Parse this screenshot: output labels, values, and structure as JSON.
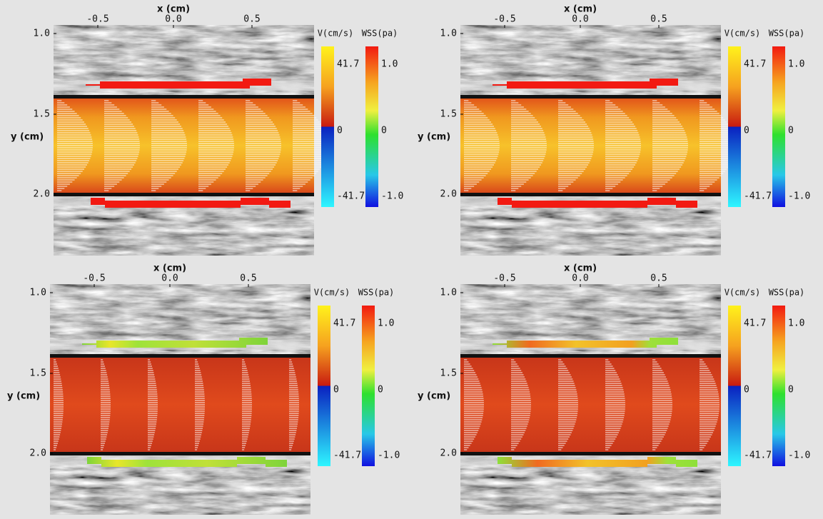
{
  "panels": [
    {
      "x_label": "x (cm)",
      "y_label": "y (cm)",
      "xticks": [
        "-0.5",
        "0.0",
        "0.5"
      ],
      "yticks": [
        "1.0",
        "1.5",
        "2.0"
      ],
      "velocity_bar": {
        "title": "V(cm/s)",
        "labels": [
          "41.7",
          "0",
          "-41.7"
        ]
      },
      "wss_bar": {
        "title": "WSS(pa)",
        "labels": [
          "1.0",
          "0",
          "-1.0"
        ]
      }
    },
    {
      "x_label": "x (cm)",
      "y_label": "y (cm)",
      "xticks": [
        "-0.5",
        "0.0",
        "0.5"
      ],
      "yticks": [
        "1.0",
        "1.5",
        "2.0"
      ],
      "velocity_bar": {
        "title": "V(cm/s)",
        "labels": [
          "41.7",
          "0",
          "-41.7"
        ]
      },
      "wss_bar": {
        "title": "WSS(pa)",
        "labels": [
          "1.0",
          "0",
          "-1.0"
        ]
      }
    },
    {
      "x_label": "x (cm)",
      "y_label": "y (cm)",
      "xticks": [
        "-0.5",
        "0.0",
        "0.5"
      ],
      "yticks": [
        "1.0",
        "1.5",
        "2.0"
      ],
      "velocity_bar": {
        "title": "V(cm/s)",
        "labels": [
          "41.7",
          "0",
          "-41.7"
        ]
      },
      "wss_bar": {
        "title": "WSS(pa)",
        "labels": [
          "1.0",
          "0",
          "-1.0"
        ]
      }
    },
    {
      "x_label": "x (cm)",
      "y_label": "y (cm)",
      "xticks": [
        "-0.5",
        "0.0",
        "0.5"
      ],
      "yticks": [
        "1.0",
        "1.5",
        "2.0"
      ],
      "velocity_bar": {
        "title": "V(cm/s)",
        "labels": [
          "41.7",
          "0",
          "-41.7"
        ]
      },
      "wss_bar": {
        "title": "WSS(pa)",
        "labels": [
          "1.0",
          "0",
          "-1.0"
        ]
      }
    }
  ]
}
